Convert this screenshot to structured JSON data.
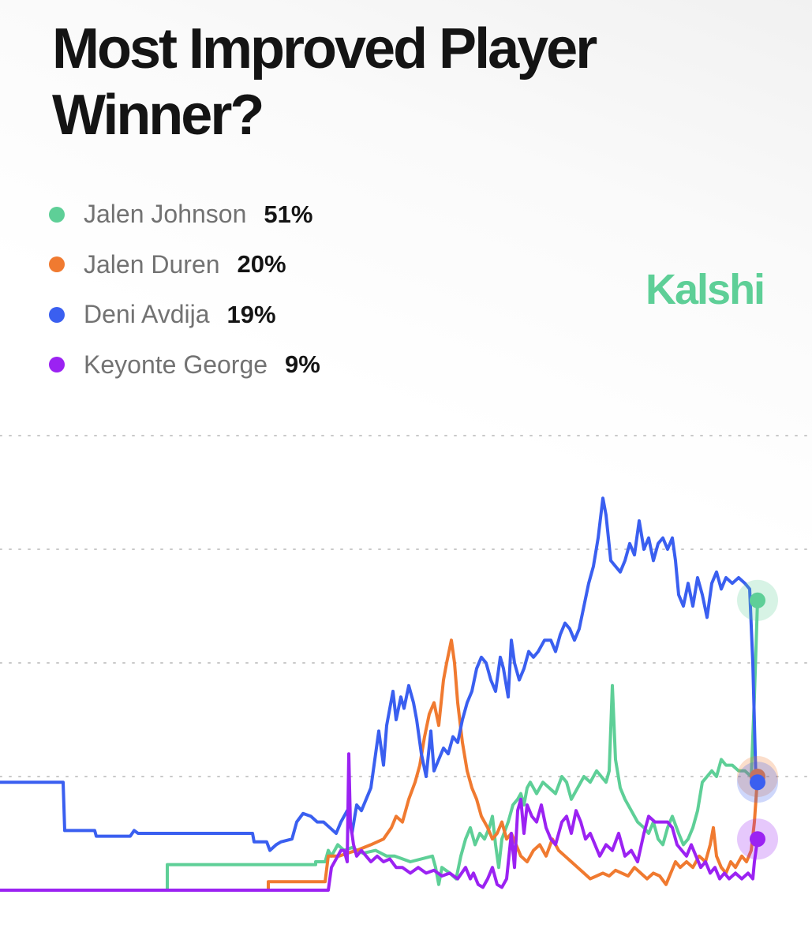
{
  "title": "Most Improved Player Winner?",
  "brand": "Kalshi",
  "colors": {
    "jalen_johnson": "#5ecf97",
    "jalen_duren": "#f07a30",
    "deni_avdija": "#3a5ff0",
    "keyonte_george": "#9b22f2",
    "grid": "#c9c9c9"
  },
  "legend": [
    {
      "name": "Jalen Johnson",
      "value": "51%",
      "color": "#5ecf97"
    },
    {
      "name": "Jalen Duren",
      "value": "20%",
      "color": "#f07a30"
    },
    {
      "name": "Deni Avdija",
      "value": "19%",
      "color": "#3a5ff0"
    },
    {
      "name": "Keyonte George",
      "value": "9%",
      "color": "#9b22f2"
    }
  ],
  "chart_data": {
    "type": "line",
    "title": "Most Improved Player Winner?",
    "xlabel": "",
    "ylabel": "",
    "ylim": [
      0,
      80
    ],
    "yticks": [
      0,
      20,
      40,
      60,
      80
    ],
    "grid": true,
    "legend_position": "top-left",
    "x": [
      0,
      80,
      82,
      120,
      122,
      165,
      170,
      175,
      320,
      338,
      350,
      357,
      370,
      378,
      400,
      416,
      420,
      432,
      440,
      446,
      452,
      460,
      470,
      478,
      486,
      494,
      500,
      508,
      516,
      524,
      532,
      540,
      548,
      556,
      564,
      572,
      580,
      588,
      596,
      604,
      612,
      620,
      628,
      636,
      644,
      652,
      660,
      668,
      676,
      684,
      692,
      700,
      708,
      716,
      724,
      732,
      740,
      748,
      756,
      764,
      772,
      780,
      788,
      796,
      804,
      812,
      820,
      828,
      836,
      844,
      852,
      860,
      868,
      876,
      884,
      892,
      900,
      908,
      916,
      924,
      932,
      940,
      948,
      952,
      956,
      960
    ],
    "series": [
      {
        "name": "Jalen Johnson",
        "color": "#5ecf97",
        "values": [
          0,
          0,
          0,
          0,
          0,
          0,
          0,
          0,
          0,
          0,
          0,
          0,
          0,
          0,
          0,
          0,
          0,
          0,
          0,
          0,
          0,
          0,
          0,
          0,
          0,
          0,
          0,
          0,
          0,
          0,
          0,
          0,
          0,
          0,
          0,
          0,
          0,
          0,
          0,
          0,
          0,
          0,
          0,
          0,
          0,
          0,
          0,
          0,
          0,
          0,
          0,
          0,
          0,
          0,
          0,
          0,
          0,
          0,
          0,
          0,
          0,
          0,
          0,
          0,
          0,
          0,
          0,
          0,
          0,
          0,
          0,
          0,
          0,
          0,
          0,
          0,
          0,
          0,
          0,
          0,
          0,
          0,
          0,
          0,
          0,
          51
        ]
      }
    ]
  },
  "lines": {
    "jalen_johnson": [
      [
        0,
        0
      ],
      [
        212,
        0
      ],
      [
        212,
        4.5
      ],
      [
        400,
        4.5
      ],
      [
        400,
        5
      ],
      [
        412,
        5
      ],
      [
        416,
        7
      ],
      [
        420,
        6
      ],
      [
        428,
        8
      ],
      [
        436,
        7
      ],
      [
        446,
        7.5
      ],
      [
        460,
        6.5
      ],
      [
        476,
        7
      ],
      [
        490,
        6
      ],
      [
        500,
        6
      ],
      [
        520,
        5
      ],
      [
        548,
        6
      ],
      [
        552,
        4
      ],
      [
        556,
        1
      ],
      [
        560,
        4
      ],
      [
        570,
        3
      ],
      [
        578,
        2
      ],
      [
        584,
        6
      ],
      [
        590,
        9
      ],
      [
        596,
        11
      ],
      [
        602,
        8
      ],
      [
        608,
        10
      ],
      [
        614,
        9
      ],
      [
        620,
        11
      ],
      [
        624,
        13
      ],
      [
        628,
        8
      ],
      [
        632,
        4
      ],
      [
        636,
        9
      ],
      [
        644,
        12
      ],
      [
        650,
        15
      ],
      [
        656,
        16
      ],
      [
        660,
        17
      ],
      [
        664,
        15
      ],
      [
        668,
        18
      ],
      [
        672,
        19
      ],
      [
        680,
        17
      ],
      [
        688,
        19
      ],
      [
        696,
        18
      ],
      [
        704,
        17
      ],
      [
        712,
        20
      ],
      [
        718,
        19
      ],
      [
        724,
        16
      ],
      [
        732,
        18
      ],
      [
        740,
        20
      ],
      [
        748,
        19
      ],
      [
        756,
        21
      ],
      [
        762,
        20
      ],
      [
        768,
        19
      ],
      [
        772,
        21
      ],
      [
        776,
        36
      ],
      [
        780,
        23
      ],
      [
        786,
        18
      ],
      [
        792,
        16
      ],
      [
        800,
        14
      ],
      [
        808,
        12
      ],
      [
        816,
        11
      ],
      [
        822,
        10
      ],
      [
        828,
        12
      ],
      [
        834,
        9
      ],
      [
        840,
        8
      ],
      [
        846,
        11
      ],
      [
        852,
        13
      ],
      [
        860,
        10
      ],
      [
        866,
        8
      ],
      [
        872,
        9
      ],
      [
        878,
        11
      ],
      [
        884,
        14
      ],
      [
        890,
        19
      ],
      [
        896,
        20
      ],
      [
        902,
        21
      ],
      [
        908,
        20
      ],
      [
        914,
        23
      ],
      [
        920,
        22
      ],
      [
        928,
        22
      ],
      [
        936,
        21
      ],
      [
        944,
        21
      ],
      [
        952,
        20
      ],
      [
        956,
        34
      ],
      [
        960,
        51
      ]
    ],
    "jalen_duren": [
      [
        0,
        0
      ],
      [
        340,
        0
      ],
      [
        340,
        1.5
      ],
      [
        412,
        1.5
      ],
      [
        416,
        6
      ],
      [
        430,
        6
      ],
      [
        440,
        6.5
      ],
      [
        452,
        7
      ],
      [
        470,
        8
      ],
      [
        486,
        9
      ],
      [
        496,
        11
      ],
      [
        502,
        13
      ],
      [
        510,
        12
      ],
      [
        518,
        16
      ],
      [
        526,
        19
      ],
      [
        532,
        22
      ],
      [
        538,
        27
      ],
      [
        544,
        31
      ],
      [
        550,
        33
      ],
      [
        556,
        29
      ],
      [
        562,
        37
      ],
      [
        566,
        40
      ],
      [
        572,
        44
      ],
      [
        576,
        40
      ],
      [
        580,
        33
      ],
      [
        586,
        26
      ],
      [
        592,
        21
      ],
      [
        598,
        18
      ],
      [
        604,
        16
      ],
      [
        610,
        13
      ],
      [
        618,
        11
      ],
      [
        624,
        9
      ],
      [
        630,
        10
      ],
      [
        636,
        12
      ],
      [
        642,
        9
      ],
      [
        648,
        10
      ],
      [
        654,
        8
      ],
      [
        660,
        6
      ],
      [
        668,
        5
      ],
      [
        676,
        7
      ],
      [
        684,
        8
      ],
      [
        692,
        6
      ],
      [
        700,
        9
      ],
      [
        708,
        7
      ],
      [
        716,
        6
      ],
      [
        724,
        5
      ],
      [
        732,
        4
      ],
      [
        740,
        3
      ],
      [
        748,
        2
      ],
      [
        756,
        2.5
      ],
      [
        764,
        3
      ],
      [
        772,
        2.5
      ],
      [
        780,
        3.5
      ],
      [
        788,
        3
      ],
      [
        796,
        2.5
      ],
      [
        804,
        4
      ],
      [
        812,
        3
      ],
      [
        820,
        2
      ],
      [
        828,
        3
      ],
      [
        836,
        2.5
      ],
      [
        844,
        1
      ],
      [
        850,
        3
      ],
      [
        856,
        5
      ],
      [
        862,
        4
      ],
      [
        870,
        5
      ],
      [
        878,
        4
      ],
      [
        886,
        6
      ],
      [
        894,
        5
      ],
      [
        900,
        8
      ],
      [
        904,
        11
      ],
      [
        908,
        6
      ],
      [
        914,
        4
      ],
      [
        920,
        3
      ],
      [
        926,
        5
      ],
      [
        932,
        4
      ],
      [
        940,
        6
      ],
      [
        946,
        5
      ],
      [
        952,
        7
      ],
      [
        956,
        12
      ],
      [
        960,
        20
      ]
    ],
    "deni_avdija": [
      [
        0,
        19
      ],
      [
        52,
        19
      ],
      [
        80,
        19
      ],
      [
        82,
        10.5
      ],
      [
        120,
        10.5
      ],
      [
        122,
        9.5
      ],
      [
        165,
        9.5
      ],
      [
        170,
        10.5
      ],
      [
        175,
        10
      ],
      [
        320,
        10
      ],
      [
        322,
        8.5
      ],
      [
        338,
        8.5
      ],
      [
        342,
        7
      ],
      [
        350,
        8
      ],
      [
        356,
        8.5
      ],
      [
        370,
        9
      ],
      [
        376,
        12
      ],
      [
        384,
        13.5
      ],
      [
        394,
        13
      ],
      [
        402,
        12
      ],
      [
        410,
        12
      ],
      [
        418,
        11
      ],
      [
        426,
        10
      ],
      [
        432,
        12
      ],
      [
        440,
        14
      ],
      [
        446,
        10
      ],
      [
        452,
        15
      ],
      [
        458,
        14
      ],
      [
        464,
        16
      ],
      [
        470,
        18
      ],
      [
        476,
        24
      ],
      [
        480,
        28
      ],
      [
        486,
        22
      ],
      [
        490,
        29
      ],
      [
        494,
        32
      ],
      [
        498,
        35
      ],
      [
        502,
        30
      ],
      [
        508,
        34
      ],
      [
        512,
        32
      ],
      [
        518,
        36
      ],
      [
        524,
        33
      ],
      [
        528,
        30
      ],
      [
        534,
        24
      ],
      [
        540,
        20
      ],
      [
        546,
        28
      ],
      [
        550,
        21
      ],
      [
        556,
        23
      ],
      [
        562,
        25
      ],
      [
        568,
        24
      ],
      [
        574,
        27
      ],
      [
        580,
        26
      ],
      [
        586,
        30
      ],
      [
        592,
        33
      ],
      [
        598,
        35
      ],
      [
        604,
        39
      ],
      [
        610,
        41
      ],
      [
        616,
        40
      ],
      [
        622,
        37
      ],
      [
        628,
        35
      ],
      [
        634,
        41
      ],
      [
        638,
        39
      ],
      [
        644,
        34
      ],
      [
        648,
        44
      ],
      [
        652,
        40
      ],
      [
        658,
        37
      ],
      [
        664,
        39
      ],
      [
        670,
        42
      ],
      [
        676,
        41
      ],
      [
        682,
        42
      ],
      [
        690,
        44
      ],
      [
        698,
        44
      ],
      [
        704,
        42
      ],
      [
        710,
        45
      ],
      [
        716,
        47
      ],
      [
        722,
        46
      ],
      [
        728,
        44
      ],
      [
        734,
        46
      ],
      [
        740,
        50
      ],
      [
        746,
        54
      ],
      [
        752,
        57
      ],
      [
        758,
        62
      ],
      [
        764,
        69
      ],
      [
        768,
        66
      ],
      [
        774,
        58
      ],
      [
        780,
        57
      ],
      [
        786,
        56
      ],
      [
        792,
        58
      ],
      [
        798,
        61
      ],
      [
        804,
        59
      ],
      [
        810,
        65
      ],
      [
        816,
        60
      ],
      [
        822,
        62
      ],
      [
        828,
        58
      ],
      [
        834,
        61
      ],
      [
        840,
        62
      ],
      [
        846,
        60
      ],
      [
        852,
        62
      ],
      [
        856,
        58
      ],
      [
        860,
        52
      ],
      [
        866,
        50
      ],
      [
        872,
        54
      ],
      [
        878,
        50
      ],
      [
        884,
        55
      ],
      [
        890,
        52
      ],
      [
        896,
        48
      ],
      [
        902,
        54
      ],
      [
        908,
        56
      ],
      [
        914,
        53
      ],
      [
        920,
        55
      ],
      [
        928,
        54
      ],
      [
        936,
        55
      ],
      [
        944,
        54
      ],
      [
        950,
        53
      ],
      [
        954,
        40
      ],
      [
        958,
        19
      ],
      [
        960,
        19
      ]
    ],
    "keyonte_george": [
      [
        0,
        0
      ],
      [
        416,
        0
      ],
      [
        420,
        4
      ],
      [
        428,
        6
      ],
      [
        432,
        7
      ],
      [
        436,
        7
      ],
      [
        440,
        5
      ],
      [
        442,
        24
      ],
      [
        444,
        12
      ],
      [
        448,
        8
      ],
      [
        452,
        6
      ],
      [
        458,
        7
      ],
      [
        464,
        6
      ],
      [
        470,
        5
      ],
      [
        478,
        6
      ],
      [
        486,
        5
      ],
      [
        494,
        5.5
      ],
      [
        502,
        4
      ],
      [
        510,
        4
      ],
      [
        520,
        3
      ],
      [
        530,
        4
      ],
      [
        540,
        3
      ],
      [
        550,
        3.5
      ],
      [
        560,
        2.5
      ],
      [
        570,
        3
      ],
      [
        580,
        2
      ],
      [
        590,
        4
      ],
      [
        596,
        2
      ],
      [
        600,
        3
      ],
      [
        606,
        1
      ],
      [
        612,
        0.5
      ],
      [
        618,
        2
      ],
      [
        624,
        4
      ],
      [
        630,
        1
      ],
      [
        636,
        0.5
      ],
      [
        642,
        2
      ],
      [
        648,
        10
      ],
      [
        652,
        4
      ],
      [
        656,
        14
      ],
      [
        660,
        16
      ],
      [
        664,
        10
      ],
      [
        668,
        15
      ],
      [
        674,
        13
      ],
      [
        680,
        12
      ],
      [
        686,
        15
      ],
      [
        692,
        11
      ],
      [
        698,
        9
      ],
      [
        704,
        8
      ],
      [
        712,
        12
      ],
      [
        718,
        13
      ],
      [
        724,
        10
      ],
      [
        730,
        14
      ],
      [
        736,
        12
      ],
      [
        742,
        9
      ],
      [
        748,
        10
      ],
      [
        754,
        8
      ],
      [
        760,
        6
      ],
      [
        768,
        8
      ],
      [
        776,
        7
      ],
      [
        784,
        10
      ],
      [
        792,
        6
      ],
      [
        800,
        7
      ],
      [
        808,
        5
      ],
      [
        816,
        10
      ],
      [
        822,
        13
      ],
      [
        830,
        12
      ],
      [
        838,
        12
      ],
      [
        846,
        12
      ],
      [
        852,
        11
      ],
      [
        858,
        8
      ],
      [
        864,
        7
      ],
      [
        870,
        6
      ],
      [
        876,
        8
      ],
      [
        882,
        6
      ],
      [
        888,
        4
      ],
      [
        894,
        5
      ],
      [
        900,
        3
      ],
      [
        906,
        4
      ],
      [
        912,
        2
      ],
      [
        918,
        3
      ],
      [
        924,
        2
      ],
      [
        932,
        3
      ],
      [
        940,
        2
      ],
      [
        948,
        3
      ],
      [
        954,
        2
      ],
      [
        956,
        5
      ],
      [
        960,
        9
      ]
    ]
  }
}
